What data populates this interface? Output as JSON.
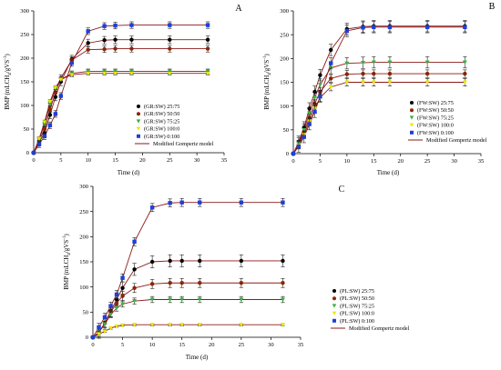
{
  "chart_data": [
    {
      "type": "scatter",
      "panel_label": "A",
      "xlabel": "Time (d)",
      "ylabel": "BMP (mLCH4/gVS-1)",
      "ylabel_main": "BMP (mLCH",
      "ylabel_sub": "4",
      "ylabel_tail": "/gVS",
      "ylabel_sup": "-1",
      "ylabel_end": ")",
      "xlim": [
        0,
        35
      ],
      "ylim": [
        0,
        300
      ],
      "xticks": [
        "0",
        "5",
        "10",
        "15",
        "20",
        "25",
        "30",
        "35"
      ],
      "yticks": [
        "0",
        "50",
        "100",
        "150",
        "200",
        "250",
        "300"
      ],
      "x": [
        0,
        1,
        2,
        3,
        4,
        5,
        7,
        10,
        13,
        15,
        18,
        25,
        32
      ],
      "series": [
        {
          "name": "(GR:SW) 25:75",
          "color": "#000000",
          "marker": "circle",
          "values": [
            0,
            22,
            42,
            80,
            118,
            150,
            198,
            232,
            238,
            239,
            239,
            239,
            239
          ],
          "err": 8,
          "model_color": "#8b1a1a"
        },
        {
          "name": "(GR:SW) 50:50",
          "color": "#8b2500",
          "marker": "circle",
          "values": [
            0,
            25,
            50,
            92,
            127,
            158,
            196,
            218,
            219,
            220,
            220,
            220,
            220
          ],
          "err": 7,
          "model_color": "#8b1a1a"
        },
        {
          "name": "(GR:SW) 75:25",
          "color": "#3cb043",
          "marker": "triangle",
          "values": [
            0,
            28,
            60,
            103,
            135,
            155,
            168,
            172,
            172,
            172,
            172,
            172,
            172
          ],
          "err": 5,
          "model_color": "#8b1a1a"
        },
        {
          "name": "(GR:SW) 100:0",
          "color": "#e8e800",
          "marker": "triangle",
          "values": [
            0,
            30,
            65,
            108,
            138,
            155,
            165,
            168,
            168,
            168,
            168,
            168,
            168
          ],
          "err": 4,
          "model_color": "#8b1a1a"
        },
        {
          "name": "(GR:SW) 0:100",
          "color": "#1f3fd8",
          "marker": "square",
          "values": [
            0,
            18,
            35,
            58,
            82,
            120,
            190,
            257,
            268,
            269,
            270,
            270,
            270
          ],
          "err": 7,
          "model_color": "#8b1a1a"
        }
      ],
      "legend_model": "Modified Gompertz model",
      "legend_position": "bottom-right"
    },
    {
      "type": "scatter",
      "panel_label": "B",
      "xlabel": "Time (d)",
      "ylabel": "BMP (mLCH4/gVS-1)",
      "ylabel_main": "BMP (mLCH",
      "ylabel_sub": "4",
      "ylabel_tail": "/gVS",
      "ylabel_sup": "-1",
      "ylabel_end": ")",
      "xlim": [
        0,
        35
      ],
      "ylim": [
        0,
        300
      ],
      "xticks": [
        "0",
        "5",
        "10",
        "15",
        "20",
        "25",
        "30",
        "35"
      ],
      "yticks": [
        "0",
        "50",
        "100",
        "150",
        "200",
        "250",
        "300"
      ],
      "x": [
        0,
        1,
        2,
        3,
        4,
        5,
        7,
        10,
        13,
        15,
        18,
        25,
        32
      ],
      "series": [
        {
          "name": "(FW:SW) 25:75",
          "color": "#000000",
          "marker": "circle",
          "values": [
            0,
            25,
            55,
            95,
            130,
            165,
            218,
            262,
            267,
            268,
            268,
            268,
            268
          ],
          "err": 12,
          "model_color": "#8b1a1a"
        },
        {
          "name": "(FW:SW) 50:50",
          "color": "#8b2500",
          "marker": "circle",
          "values": [
            0,
            20,
            45,
            75,
            105,
            130,
            158,
            167,
            168,
            168,
            168,
            168,
            168
          ],
          "err": 8,
          "model_color": "#8b1a1a"
        },
        {
          "name": "(FW:SW) 75:25",
          "color": "#3cb043",
          "marker": "triangle",
          "values": [
            0,
            22,
            50,
            85,
            118,
            145,
            180,
            190,
            191,
            192,
            192,
            192,
            192
          ],
          "err": 12,
          "model_color": "#8b1a1a"
        },
        {
          "name": "(FW:SW) 100:0",
          "color": "#e8e800",
          "marker": "triangle",
          "values": [
            0,
            18,
            40,
            68,
            95,
            118,
            140,
            150,
            150,
            150,
            150,
            150,
            150
          ],
          "err": 8,
          "model_color": "#8b1a1a"
        },
        {
          "name": "(FW:SW) 0:100",
          "color": "#1f3fd8",
          "marker": "square",
          "values": [
            0,
            15,
            35,
            62,
            88,
            120,
            190,
            258,
            265,
            266,
            266,
            266,
            266
          ],
          "err": 12,
          "model_color": "#8b1a1a"
        }
      ],
      "legend_model": "Modified Gompertz model",
      "legend_position": "bottom-right"
    },
    {
      "type": "scatter",
      "panel_label": "C",
      "xlabel": "Time (d)",
      "ylabel": "BMP (mLCH4/gVS-1)",
      "ylabel_main": "BMP (mLCH",
      "ylabel_sub": "4",
      "ylabel_tail": "/gVS",
      "ylabel_sup": "-1",
      "ylabel_end": ")",
      "xlim": [
        0,
        35
      ],
      "ylim": [
        0,
        300
      ],
      "xticks": [
        "0",
        "5",
        "10",
        "15",
        "20",
        "25",
        "30",
        "35"
      ],
      "yticks": [
        "0",
        "50",
        "100",
        "150",
        "200",
        "250",
        "300"
      ],
      "x": [
        0,
        1,
        2,
        3,
        4,
        5,
        7,
        10,
        13,
        15,
        18,
        25,
        32
      ],
      "series": [
        {
          "name": "(PL:SW) 25:75",
          "color": "#000000",
          "marker": "circle",
          "values": [
            0,
            10,
            28,
            52,
            75,
            98,
            135,
            150,
            152,
            152,
            152,
            152,
            152
          ],
          "err": 12,
          "model_color": "#8b1a1a"
        },
        {
          "name": "(PL:SW) 50:50",
          "color": "#8b2500",
          "marker": "circle",
          "values": [
            0,
            10,
            28,
            50,
            68,
            82,
            98,
            106,
            108,
            108,
            108,
            108,
            108
          ],
          "err": 9,
          "model_color": "#8b1a1a"
        },
        {
          "name": "(PL:SW) 75:25",
          "color": "#3cb043",
          "marker": "triangle",
          "values": [
            0,
            10,
            26,
            45,
            58,
            66,
            72,
            75,
            75,
            75,
            75,
            75,
            75
          ],
          "err": 6,
          "model_color": "#8b1a1a"
        },
        {
          "name": "(PL:SW) 100:0",
          "color": "#e8e800",
          "marker": "triangle",
          "values": [
            0,
            6,
            12,
            18,
            22,
            24,
            25,
            25,
            25,
            25,
            25,
            25,
            25
          ],
          "err": 2,
          "model_color": "#8b1a1a"
        },
        {
          "name": "(PL:SW) 0:100",
          "color": "#1f3fd8",
          "marker": "square",
          "values": [
            0,
            20,
            40,
            62,
            85,
            118,
            190,
            258,
            267,
            268,
            268,
            268,
            268
          ],
          "err": 8,
          "model_color": "#8b1a1a"
        }
      ],
      "legend_model": "Modified Gompertz model",
      "legend_position": "bottom-right"
    }
  ]
}
